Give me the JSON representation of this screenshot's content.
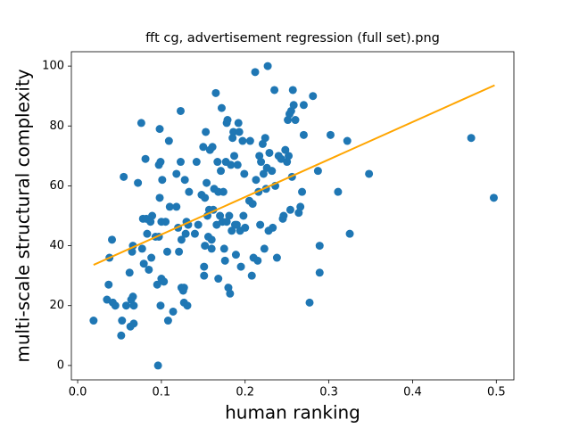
{
  "chart_data": {
    "type": "scatter",
    "title": "fft cg, advertisement regression (full set).png",
    "x_label": "human ranking",
    "y_label": "multi-scale structural complexity",
    "color": "#1f77b4",
    "x": [
      0.019,
      0.035,
      0.037,
      0.038,
      0.041,
      0.042,
      0.045,
      0.052,
      0.053,
      0.055,
      0.058,
      0.062,
      0.063,
      0.064,
      0.065,
      0.066,
      0.066,
      0.067,
      0.067,
      0.072,
      0.076,
      0.077,
      0.078,
      0.079,
      0.081,
      0.082,
      0.083,
      0.085,
      0.087,
      0.088,
      0.089,
      0.093,
      0.095,
      0.096,
      0.097,
      0.097,
      0.098,
      0.098,
      0.099,
      0.099,
      0.1,
      0.1,
      0.101,
      0.103,
      0.105,
      0.107,
      0.108,
      0.109,
      0.11,
      0.114,
      0.118,
      0.118,
      0.12,
      0.121,
      0.123,
      0.123,
      0.124,
      0.124,
      0.126,
      0.127,
      0.127,
      0.128,
      0.129,
      0.13,
      0.131,
      0.132,
      0.133,
      0.14,
      0.142,
      0.144,
      0.148,
      0.15,
      0.151,
      0.151,
      0.152,
      0.152,
      0.153,
      0.154,
      0.155,
      0.156,
      0.157,
      0.158,
      0.16,
      0.16,
      0.161,
      0.162,
      0.163,
      0.165,
      0.166,
      0.167,
      0.168,
      0.168,
      0.17,
      0.171,
      0.172,
      0.173,
      0.174,
      0.175,
      0.176,
      0.177,
      0.178,
      0.178,
      0.179,
      0.18,
      0.181,
      0.182,
      0.183,
      0.184,
      0.185,
      0.186,
      0.187,
      0.188,
      0.189,
      0.19,
      0.191,
      0.192,
      0.193,
      0.194,
      0.195,
      0.197,
      0.198,
      0.199,
      0.2,
      0.205,
      0.206,
      0.208,
      0.209,
      0.21,
      0.212,
      0.213,
      0.215,
      0.216,
      0.217,
      0.218,
      0.219,
      0.221,
      0.222,
      0.223,
      0.224,
      0.225,
      0.226,
      0.227,
      0.228,
      0.229,
      0.232,
      0.233,
      0.235,
      0.236,
      0.238,
      0.24,
      0.243,
      0.245,
      0.246,
      0.248,
      0.25,
      0.251,
      0.252,
      0.253,
      0.254,
      0.255,
      0.256,
      0.257,
      0.258,
      0.26,
      0.27,
      0.264,
      0.27,
      0.266,
      0.268,
      0.277,
      0.281,
      0.287,
      0.289,
      0.289,
      0.302,
      0.311,
      0.322,
      0.325,
      0.348,
      0.47,
      0.497
    ],
    "values": [
      15,
      22,
      27,
      36,
      42,
      21,
      20,
      10,
      15,
      63,
      20,
      31,
      13,
      22,
      38,
      40,
      23,
      14,
      20,
      61,
      81,
      39,
      49,
      34,
      69,
      49,
      44,
      32,
      48,
      36,
      50,
      43,
      27,
      0,
      67,
      43,
      56,
      79,
      68,
      20,
      29,
      48,
      62,
      28,
      48,
      38,
      15,
      75,
      53,
      18,
      64,
      53,
      46,
      38,
      85,
      68,
      42,
      26,
      25,
      26,
      21,
      62,
      44,
      48,
      20,
      47,
      58,
      44,
      68,
      47,
      57,
      73,
      33,
      30,
      56,
      40,
      78,
      61,
      50,
      43,
      52,
      72,
      39,
      42,
      73,
      52,
      59,
      91,
      47,
      68,
      29,
      58,
      50,
      65,
      86,
      48,
      58,
      39,
      35,
      68,
      48,
      81,
      82,
      26,
      50,
      24,
      67,
      45,
      76,
      78,
      70,
      47,
      37,
      47,
      67,
      81,
      78,
      45,
      33,
      75,
      50,
      64,
      46,
      55,
      75,
      30,
      54,
      36,
      98,
      62,
      35,
      58,
      70,
      47,
      68,
      74,
      64,
      39,
      76,
      59,
      66,
      100,
      45,
      71,
      65,
      46,
      92,
      60,
      36,
      70,
      69,
      49,
      50,
      72,
      68,
      82,
      70,
      84,
      52,
      85,
      63,
      92,
      87,
      82,
      77,
      51,
      87,
      53,
      58,
      21,
      90,
      65,
      40,
      31,
      77,
      58,
      75,
      44,
      64,
      76,
      56
    ],
    "regression_line": {
      "x": [
        0.019,
        0.498
      ],
      "values": [
        33.6,
        93.6
      ],
      "color": "orange"
    },
    "xlim": [
      -0.0075,
      0.521
    ],
    "ylim": [
      -4.8,
      104.8
    ],
    "xticks": [
      {
        "value": 0,
        "label": "0.0"
      },
      0.1,
      0.2,
      0.3,
      0.4,
      0.5
    ],
    "yticks": [
      0,
      20,
      40,
      60,
      80,
      100
    ],
    "grid": false
  }
}
